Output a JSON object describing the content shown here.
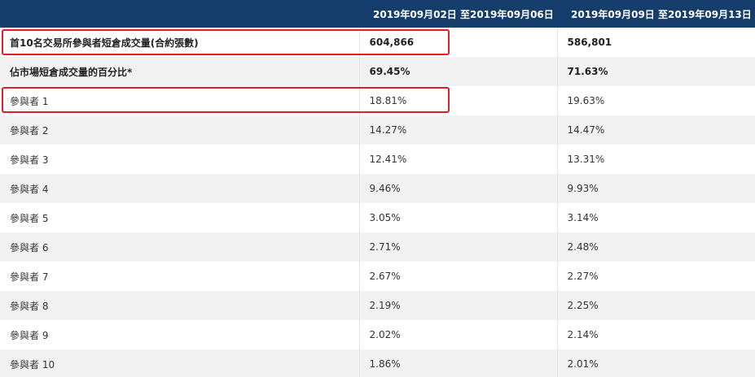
{
  "header": {
    "col1": "",
    "col2": "2019年09月02日 至2019年09月06日",
    "col3": "2019年09月09日 至2019年09月13日"
  },
  "rows": [
    {
      "label": "首10名交易所參與者短倉成交量(合約張數)",
      "v1": "604,866",
      "v2": "586,801",
      "bold": true
    },
    {
      "label": "佔市場短倉成交量的百分比*",
      "v1": "69.45%",
      "v2": "71.63%",
      "bold": true
    },
    {
      "label": "參與者 1",
      "v1": "18.81%",
      "v2": "19.63%",
      "bold": false
    },
    {
      "label": "參與者 2",
      "v1": "14.27%",
      "v2": "14.47%",
      "bold": false
    },
    {
      "label": "參與者 3",
      "v1": "12.41%",
      "v2": "13.31%",
      "bold": false
    },
    {
      "label": "參與者 4",
      "v1": "9.46%",
      "v2": "9.93%",
      "bold": false
    },
    {
      "label": "參與者 5",
      "v1": "3.05%",
      "v2": "3.14%",
      "bold": false
    },
    {
      "label": "參與者 6",
      "v1": "2.71%",
      "v2": "2.48%",
      "bold": false
    },
    {
      "label": "參與者 7",
      "v1": "2.67%",
      "v2": "2.27%",
      "bold": false
    },
    {
      "label": "參與者 8",
      "v1": "2.19%",
      "v2": "2.25%",
      "bold": false
    },
    {
      "label": "參與者 9",
      "v1": "2.02%",
      "v2": "2.14%",
      "bold": false
    },
    {
      "label": "參與者 10",
      "v1": "1.86%",
      "v2": "2.01%",
      "bold": false
    }
  ],
  "colors": {
    "header_bg": "#143d6b",
    "highlight_border": "#e02020"
  }
}
